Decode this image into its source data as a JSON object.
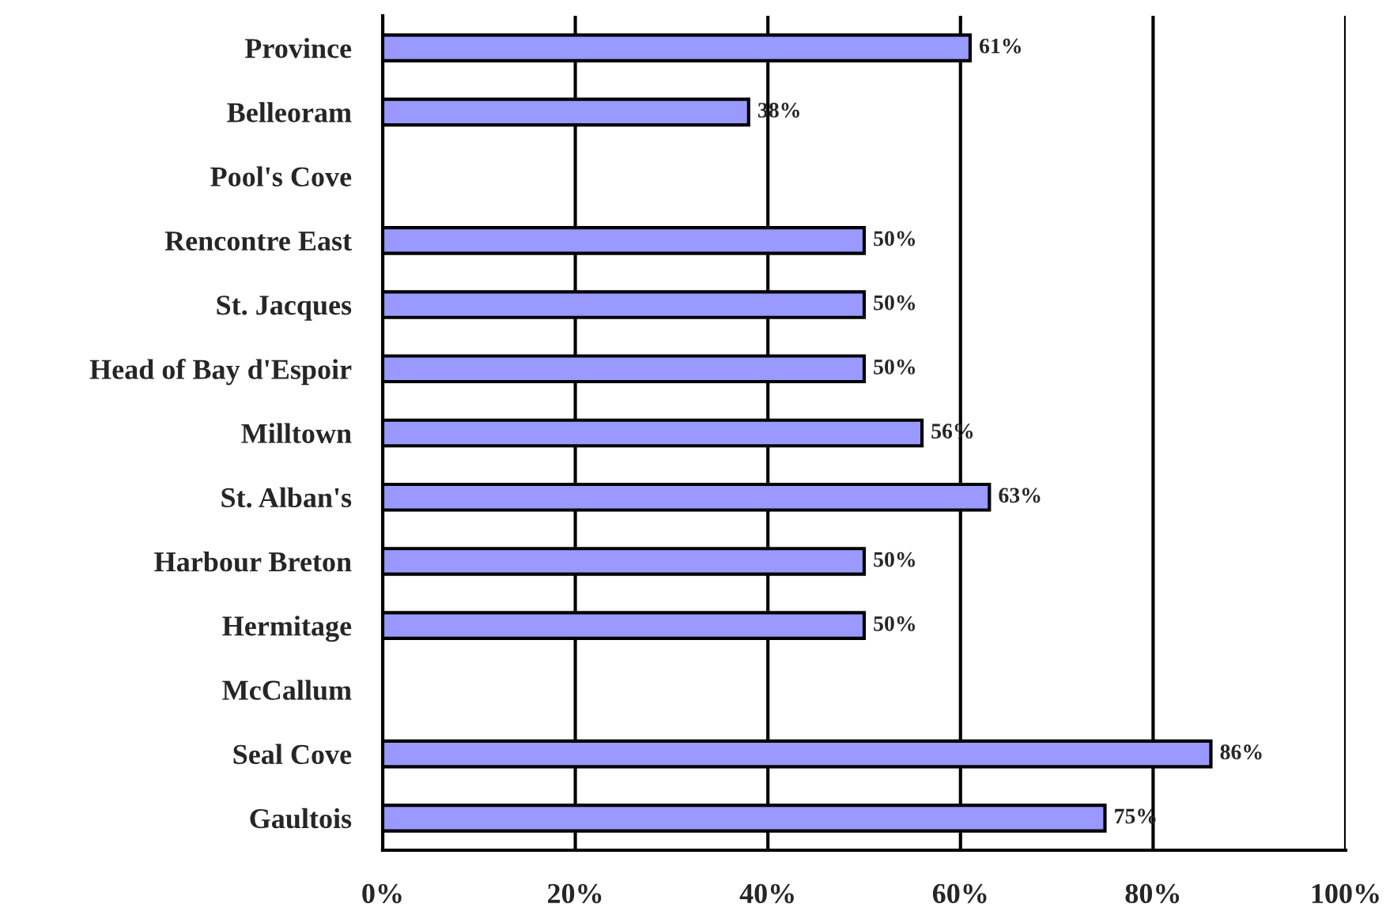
{
  "chart_data": {
    "type": "bar",
    "orientation": "horizontal",
    "categories": [
      "Province",
      "Belleoram",
      "Pool's Cove",
      "Rencontre East",
      "St. Jacques",
      "Head of Bay d'Espoir",
      "Milltown",
      "St. Alban's",
      "Harbour Breton",
      "Hermitage",
      "McCallum",
      "Seal Cove",
      "Gaultois"
    ],
    "values": [
      61,
      38,
      null,
      50,
      50,
      50,
      56,
      63,
      50,
      50,
      null,
      86,
      75
    ],
    "value_labels": [
      "61%",
      "38%",
      null,
      "50%",
      "50%",
      "50%",
      "56%",
      "63%",
      "50%",
      "50%",
      null,
      "86%",
      "75%"
    ],
    "color": "#9999ff",
    "xlim": [
      0,
      100
    ],
    "xticks": [
      {
        "value": 0,
        "label": "0%"
      },
      {
        "value": 20,
        "label": "20%"
      },
      {
        "value": 40,
        "label": "40%"
      },
      {
        "value": 60,
        "label": "60%"
      },
      {
        "value": 80,
        "label": "80%"
      },
      {
        "value": 100,
        "label": "100%"
      }
    ],
    "grid": "x"
  }
}
